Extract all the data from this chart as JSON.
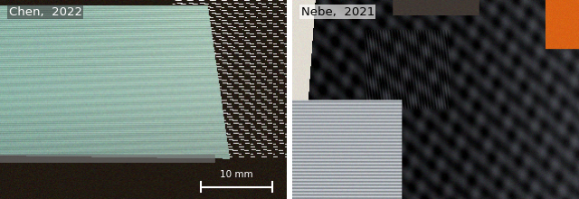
{
  "label_left": "Chen,  2022",
  "label_right": "Nebe,  2021",
  "scale_bar_text": "10 mm",
  "label_fontsize": 9.5,
  "scale_fontsize": 7.5,
  "label_color_left": "white",
  "label_color_right": "black",
  "background_color": "white",
  "fig_width": 6.4,
  "fig_height": 2.2,
  "dpi": 100
}
